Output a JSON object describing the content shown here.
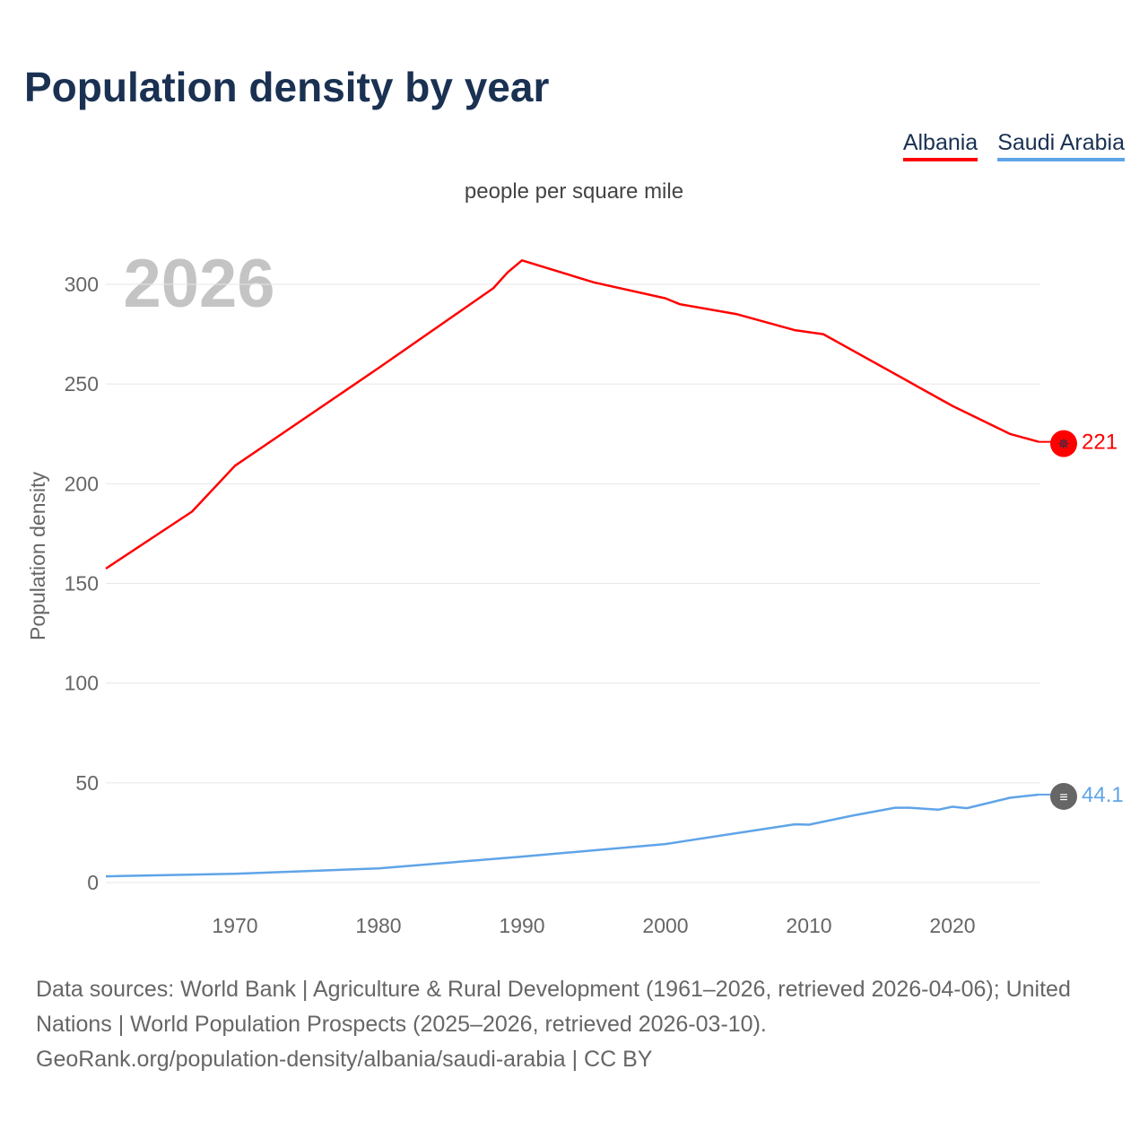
{
  "title": "Population density by year",
  "chart_data": {
    "type": "line",
    "title": "Population density by year",
    "subtitle": "people per square mile",
    "ylabel": "Population density",
    "xlabel": "",
    "xlim": [
      1961,
      2026
    ],
    "ylim": [
      0,
      320
    ],
    "xticks": [
      1970,
      1980,
      1990,
      2000,
      2010,
      2020
    ],
    "yticks": [
      0,
      50,
      100,
      150,
      200,
      250,
      300
    ],
    "grid": true,
    "legend_position": "top-right",
    "year_label": "2026",
    "series": [
      {
        "name": "Albania",
        "color": "#ff0000",
        "end_label": "221",
        "marker_bg": "#ff0000",
        "marker_fg": "#1a3152",
        "points": [
          [
            1961,
            157.4
          ],
          [
            1967,
            186
          ],
          [
            1970,
            209
          ],
          [
            1980,
            258
          ],
          [
            1988,
            298
          ],
          [
            1989,
            306
          ],
          [
            1990,
            312
          ],
          [
            1995,
            301
          ],
          [
            2000,
            293
          ],
          [
            2001,
            290
          ],
          [
            2005,
            285
          ],
          [
            2009,
            277
          ],
          [
            2010,
            276
          ],
          [
            2011,
            275
          ],
          [
            2020,
            239
          ],
          [
            2024,
            225
          ],
          [
            2026,
            221
          ]
        ]
      },
      {
        "name": "Saudi Arabia",
        "color": "#5fa4e8",
        "end_label": "44.1",
        "marker_bg": "#666666",
        "marker_fg": "#ffffff",
        "points": [
          [
            1961,
            3.1
          ],
          [
            1970,
            4.4
          ],
          [
            1980,
            7.1
          ],
          [
            1990,
            13
          ],
          [
            2000,
            19.3
          ],
          [
            2009,
            29.2
          ],
          [
            2010,
            29
          ],
          [
            2013,
            33.5
          ],
          [
            2016,
            37.5
          ],
          [
            2017,
            37.5
          ],
          [
            2019,
            36.5
          ],
          [
            2020,
            38
          ],
          [
            2021,
            37.3
          ],
          [
            2024,
            42.5
          ],
          [
            2026,
            44.1
          ]
        ]
      }
    ]
  },
  "footer": {
    "sources": "Data sources: World Bank | Agriculture & Rural Development (1961–2026, retrieved 2026-04-06); United Nations | World Population Prospects (2025–2026, retrieved 2026-03-10).",
    "credit": "GeoRank.org/population-density/albania/saudi-arabia | CC BY"
  }
}
